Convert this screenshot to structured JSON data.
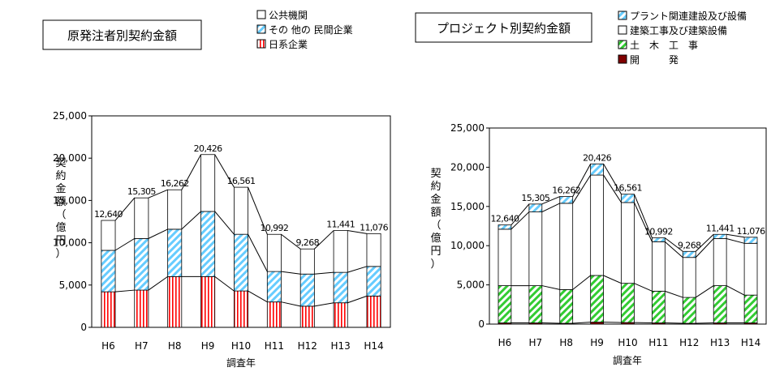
{
  "chart_data": [
    {
      "type": "bar",
      "stacked": true,
      "title": "原発注者別契約金額",
      "xlabel": "調査年",
      "ylabel": [
        "契",
        "約",
        "金",
        "額",
        "（",
        "億",
        "円",
        "）"
      ],
      "ylim": [
        0,
        25000
      ],
      "yticks": [
        "0",
        "5,000",
        "10,000",
        "15,000",
        "20,000",
        "25,000"
      ],
      "categories": [
        "H6",
        "H7",
        "H8",
        "H9",
        "H10",
        "H11",
        "H12",
        "H13",
        "H14"
      ],
      "totals_labels": [
        "12,640",
        "15,305",
        "16,262",
        "20,426",
        "16,561",
        "10,992",
        "9,268",
        "11,441",
        "11,076"
      ],
      "series": [
        {
          "name": "日系企業",
          "color": "#ff0000",
          "pattern": "vertical-stripes",
          "values": [
            4200,
            4400,
            6000,
            6000,
            4300,
            3000,
            2500,
            2900,
            3700
          ]
        },
        {
          "name": "その 他の 民間企業",
          "color": "#66ccff",
          "pattern": "diagonal-hatch",
          "values": [
            4900,
            6100,
            5600,
            7700,
            6700,
            3600,
            3800,
            3600,
            3500
          ]
        },
        {
          "name": "公共機関",
          "color": "#ffffff",
          "pattern": "solid",
          "values": [
            3540,
            4805,
            4662,
            6726,
            5561,
            4392,
            2968,
            4941,
            3876
          ]
        }
      ],
      "totals": [
        12640,
        15305,
        16262,
        20426,
        16561,
        10992,
        9268,
        11441,
        11076
      ],
      "grid": false,
      "legend_order": [
        "公共機関",
        "その 他の 民間企業",
        "日系企業"
      ],
      "legend_position": "top-right"
    },
    {
      "type": "bar",
      "stacked": true,
      "title": "プロジェクト別契約金額",
      "xlabel": "調査年",
      "ylabel": [
        "契",
        "約",
        "金",
        "額",
        "（",
        "億",
        "円",
        "）"
      ],
      "ylim": [
        0,
        25000
      ],
      "yticks": [
        "0",
        "5,000",
        "10,000",
        "15,000",
        "20,000",
        "25,000"
      ],
      "categories": [
        "H6",
        "H7",
        "H8",
        "H9",
        "H10",
        "H11",
        "H12",
        "H13",
        "H14"
      ],
      "totals_labels": [
        "12,640",
        "15,305",
        "16,262",
        "20,426",
        "16,561",
        "10,992",
        "9,268",
        "11,441",
        "11,076"
      ],
      "series": [
        {
          "name": "開　　　発",
          "color": "#800000",
          "pattern": "solid",
          "values": [
            150,
            150,
            100,
            250,
            200,
            150,
            100,
            150,
            150
          ]
        },
        {
          "name": "土　木　工　事",
          "color": "#33cc33",
          "pattern": "diagonal-hatch",
          "values": [
            4750,
            4750,
            4300,
            5950,
            5000,
            4050,
            3300,
            4750,
            3550
          ]
        },
        {
          "name": "建築工事及び建築設備",
          "color": "#ffffff",
          "pattern": "solid",
          "values": [
            7200,
            9400,
            11000,
            12800,
            10300,
            6300,
            5100,
            6000,
            6600
          ]
        },
        {
          "name": "プラント関連建設及び設備",
          "color": "#66ccff",
          "pattern": "diagonal-hatch",
          "values": [
            540,
            1005,
            862,
            1426,
            1061,
            492,
            768,
            541,
            776
          ]
        }
      ],
      "totals": [
        12640,
        15305,
        16262,
        20426,
        16561,
        10992,
        9268,
        11441,
        11076
      ],
      "grid": false,
      "legend_order": [
        "プラント関連建設及び設備",
        "建築工事及び建築設備",
        "土　木　工　事",
        "開　　　発"
      ],
      "legend_position": "top-right"
    }
  ]
}
